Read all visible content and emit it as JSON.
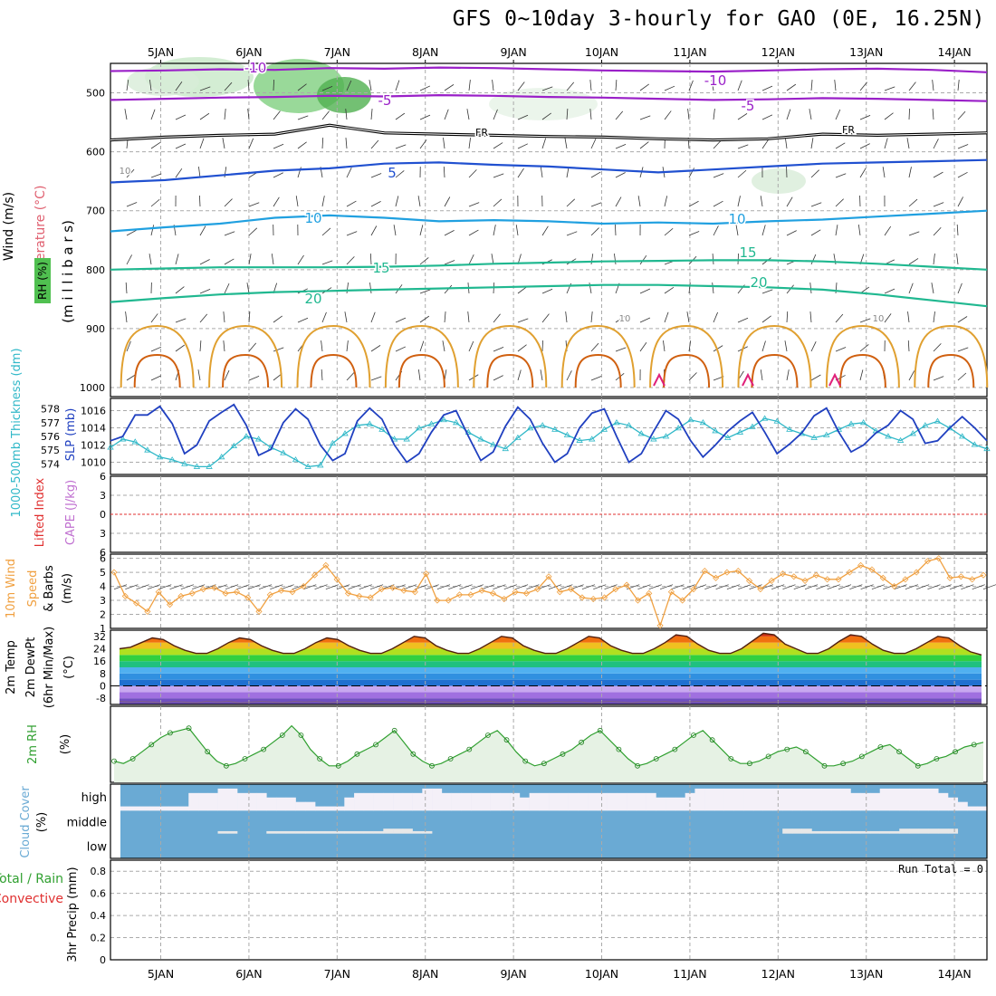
{
  "title": "GFS 0~10day 3-hourly for GAO (0E, 16.25N)",
  "dates": [
    "5JAN",
    "6JAN",
    "7JAN",
    "8JAN",
    "9JAN",
    "10JAN",
    "11JAN",
    "12JAN",
    "13JAN",
    "14JAN"
  ],
  "colors": {
    "purple": "#9a20c8",
    "black": "#000000",
    "blue": "#2050d0",
    "cyan": "#20a0e0",
    "teal": "#20b890",
    "orange": "#e0a030",
    "darkorange": "#d06010",
    "magenta": "#e0207a",
    "rh_green": "#40c040",
    "slp_blue": "#2040c0",
    "thick_cyan": "#30b8c8",
    "li_red": "#e03030",
    "cape_violet": "#c070d0",
    "wind_orange": "#f0a040",
    "cloud_blue": "#6aaad4",
    "cloud_white": "#f4f0f8",
    "cloud_grey": "#e8e8e8"
  },
  "chart_data": [
    {
      "type": "contour",
      "panel": "upper-air",
      "ylabel_parts": [
        "Wind (m/s)",
        "Temperature (°C)",
        "RH (%)",
        "(m i l l i b a r s)"
      ],
      "yticks": [
        500,
        600,
        700,
        800,
        900,
        1000
      ],
      "ylim": [
        1000,
        450
      ],
      "contour_labels": [
        "-10",
        "-10",
        "-5",
        "-5",
        "FR",
        "FR",
        "5",
        "10",
        "10",
        "10",
        "15",
        "15",
        "20",
        "20",
        "10",
        "10"
      ],
      "isotherms": [
        {
          "level": -10,
          "pressure": [
            463,
            462,
            460,
            461,
            458,
            459,
            457,
            458,
            460,
            462,
            463,
            464,
            462,
            460,
            459,
            461,
            465
          ]
        },
        {
          "level": -5,
          "pressure": [
            512,
            510,
            508,
            507,
            505,
            506,
            504,
            505,
            507,
            508,
            510,
            512,
            511,
            509,
            510,
            512,
            514
          ]
        },
        {
          "level": 0,
          "pressure": [
            580,
            575,
            572,
            570,
            555,
            568,
            570,
            572,
            574,
            575,
            578,
            580,
            578,
            570,
            572,
            570,
            568
          ]
        },
        {
          "level": 5,
          "pressure": [
            652,
            648,
            640,
            632,
            628,
            620,
            618,
            622,
            625,
            630,
            635,
            630,
            625,
            620,
            618,
            616,
            614
          ]
        },
        {
          "level": 10,
          "pressure": [
            735,
            728,
            722,
            712,
            708,
            712,
            718,
            716,
            718,
            722,
            720,
            722,
            718,
            715,
            710,
            705,
            700
          ]
        },
        {
          "level": 15,
          "pressure": [
            800,
            798,
            796,
            796,
            796,
            795,
            793,
            790,
            788,
            786,
            785,
            784,
            784,
            786,
            790,
            795,
            800
          ]
        },
        {
          "level": 20,
          "pressure": [
            855,
            848,
            842,
            838,
            836,
            834,
            832,
            830,
            828,
            826,
            826,
            828,
            830,
            834,
            842,
            852,
            862
          ]
        }
      ]
    },
    {
      "type": "line",
      "panel": "slp-thickness",
      "ylabel_parts": [
        "1000-500mb Thickness (dm)",
        "SLP (mb)"
      ],
      "left_ticks": [
        574,
        575,
        576,
        577,
        578
      ],
      "right_ticks": [
        1010,
        1012,
        1014,
        1016
      ],
      "series": [
        {
          "axis": "right",
          "values": [
            1012.5,
            1013.0,
            1015.5,
            1015.5,
            1016.5,
            1014.5,
            1011.0,
            1012.0,
            1014.8,
            1015.8,
            1016.7,
            1014.3,
            1010.8,
            1011.5,
            1014.6,
            1016.2,
            1015.0,
            1012.0,
            1010.2,
            1011.0,
            1014.8,
            1016.3,
            1015.0,
            1012.0,
            1010.0,
            1011.0,
            1013.5,
            1015.5,
            1016.0,
            1013.0,
            1010.2,
            1011.2,
            1014.2,
            1016.4,
            1015.0,
            1012.2,
            1010.0,
            1011.0,
            1014.0,
            1015.7,
            1016.2,
            1013.0,
            1010.0,
            1011.0,
            1013.6,
            1016.0,
            1015.0,
            1012.5,
            1010.6,
            1012.0,
            1013.6,
            1014.8,
            1015.8,
            1013.5,
            1011.0,
            1012.1,
            1013.4,
            1015.4,
            1016.3,
            1013.5,
            1011.2,
            1012.0,
            1013.4,
            1014.3,
            1016.0,
            1015.0,
            1012.2,
            1012.5,
            1014.0,
            1015.3,
            1014.0,
            1012.5
          ]
        },
        {
          "axis": "left",
          "values": [
            575.2,
            575.8,
            575.6,
            575.0,
            574.5,
            574.3,
            574.0,
            573.8,
            573.8,
            574.5,
            575.3,
            576.0,
            575.8,
            575.2,
            574.8,
            574.3,
            573.8,
            573.9,
            575.5,
            576.2,
            576.8,
            576.9,
            576.5,
            575.8,
            575.8,
            576.6,
            576.9,
            577.2,
            577.0,
            576.3,
            575.8,
            575.4,
            575.1,
            575.9,
            576.6,
            576.8,
            576.5,
            576.1,
            575.7,
            575.8,
            576.5,
            577.0,
            576.8,
            576.2,
            575.8,
            576.0,
            576.6,
            577.2,
            577.0,
            576.4,
            575.9,
            576.3,
            576.7,
            577.3,
            577.1,
            576.5,
            576.2,
            575.9,
            576.1,
            576.5,
            576.9,
            577.0,
            576.4,
            576.0,
            575.7,
            576.2,
            576.8,
            577.1,
            576.6,
            576.0,
            575.4,
            575.1
          ]
        }
      ]
    },
    {
      "type": "line",
      "panel": "lifted-cape",
      "ylabel_parts": [
        "Lifted Index",
        "CAPE (J/kg)"
      ],
      "yticks": [
        -6,
        -3,
        0,
        3,
        6
      ],
      "yticklabels": [
        "6",
        "3",
        "0",
        "3",
        "6"
      ],
      "values": []
    },
    {
      "type": "line",
      "panel": "10m-wind",
      "ylabel_parts": [
        "10m Wind",
        "Speed",
        "& Barbs",
        "(m/s)"
      ],
      "yticks": [
        1,
        2,
        3,
        4,
        5,
        6
      ],
      "ylim": [
        1,
        6.3
      ],
      "values": [
        5.0,
        3.3,
        2.8,
        2.2,
        3.6,
        2.7,
        3.3,
        3.5,
        3.8,
        3.9,
        3.5,
        3.6,
        3.2,
        2.2,
        3.4,
        3.7,
        3.6,
        4.0,
        4.8,
        5.5,
        4.5,
        3.5,
        3.3,
        3.2,
        3.8,
        3.9,
        3.7,
        3.6,
        4.9,
        3.0,
        3.0,
        3.4,
        3.4,
        3.7,
        3.5,
        3.1,
        3.6,
        3.5,
        3.8,
        4.7,
        3.6,
        3.8,
        3.2,
        3.1,
        3.2,
        3.8,
        4.1,
        3.0,
        3.5,
        1.2,
        3.6,
        3.0,
        3.8,
        5.1,
        4.6,
        5.0,
        5.1,
        4.4,
        3.8,
        4.4,
        4.9,
        4.7,
        4.4,
        4.8,
        4.5,
        4.5,
        5.0,
        5.5,
        5.2,
        4.6,
        4.0,
        4.5,
        5.0,
        5.8,
        6.0,
        4.6,
        4.7,
        4.5,
        4.8
      ]
    },
    {
      "type": "area",
      "panel": "2m-temp",
      "ylabel_parts": [
        "2m Temp",
        "2m DewPt",
        "(6hr Min/Max)",
        "(°C)"
      ],
      "yticks": [
        -8,
        0,
        8,
        16,
        24,
        32
      ],
      "ylim": [
        -12,
        36
      ],
      "temp": [
        24,
        25,
        28,
        31,
        30,
        26,
        23,
        21,
        21,
        24,
        28,
        31,
        30,
        26,
        23,
        21,
        21,
        24,
        28,
        31,
        30,
        26,
        23,
        21,
        21,
        24,
        28,
        32,
        31,
        26,
        23,
        21,
        21,
        24,
        28,
        32,
        31,
        26,
        23,
        21,
        21,
        24,
        28,
        32,
        31,
        26,
        23,
        21,
        21,
        24,
        28,
        33,
        32,
        27,
        23,
        21,
        21,
        24,
        29,
        34,
        33,
        27,
        24,
        21,
        21,
        24,
        29,
        33,
        32,
        27,
        23,
        21,
        21,
        24,
        28,
        32,
        31,
        26,
        22,
        20
      ],
      "dewpoint": [
        -10,
        -10.5,
        -10,
        -10.5,
        -11,
        -10,
        -10.5,
        -11,
        -10,
        -10.5,
        -10,
        -11,
        -10.5,
        -10,
        -10.5,
        -11,
        -10,
        -10.5,
        -10,
        -11,
        -10.5,
        -10,
        -10.5,
        -11,
        -10,
        -10.5,
        -10,
        -11,
        -10.5,
        -10,
        -10.5,
        -11,
        -10,
        -10.5,
        -10,
        -11,
        -10.5,
        -10,
        -10.5,
        -11,
        -10,
        -10.5,
        -10,
        -11,
        -10.5,
        -10,
        -10.5,
        -11,
        -10,
        -10.5,
        -10,
        -11,
        -10.5,
        -10,
        -10.5,
        -11,
        -10,
        -10.5,
        -10,
        -11,
        -10.5,
        -10,
        -10.5,
        -11,
        -10,
        -10.5,
        -10,
        -11,
        -10.5,
        -10,
        -10.5,
        -11,
        -10,
        -10.5,
        -10,
        -11,
        -10.5,
        -10,
        -10.5,
        -11
      ]
    },
    {
      "type": "line",
      "panel": "2m-rh",
      "ylabel_parts": [
        "2m RH",
        "(%)"
      ],
      "ylim": [
        0,
        30
      ],
      "values": [
        9,
        8,
        10,
        13,
        16,
        19,
        21,
        22,
        23,
        18,
        13,
        9,
        7,
        8,
        10,
        12,
        14,
        17,
        20,
        24,
        20,
        14,
        10,
        7,
        7,
        9,
        12,
        14,
        16,
        19,
        22,
        17,
        12,
        9,
        7,
        8,
        10,
        12,
        14,
        17,
        20,
        22,
        18,
        13,
        9,
        7,
        8,
        10,
        12,
        14,
        17,
        20,
        22,
        18,
        14,
        10,
        7,
        8,
        10,
        12,
        14,
        17,
        20,
        22,
        18,
        14,
        10,
        8,
        8,
        9,
        11,
        13,
        14,
        15,
        13,
        10,
        7,
        7,
        8,
        9,
        11,
        13,
        15,
        16,
        13,
        10,
        7,
        8,
        10,
        11,
        13,
        15,
        16,
        17
      ]
    },
    {
      "type": "heatmap",
      "panel": "cloud-cover",
      "ylabel_parts": [
        "Cloud Cover",
        "(%)"
      ],
      "rows": [
        "high",
        "middle",
        "low"
      ],
      "high": [
        100,
        100,
        100,
        100,
        100,
        100,
        100,
        40,
        40,
        40,
        20,
        20,
        40,
        40,
        40,
        60,
        60,
        60,
        80,
        80,
        100,
        100,
        100,
        60,
        40,
        40,
        40,
        40,
        40,
        40,
        40,
        20,
        20,
        40,
        40,
        40,
        40,
        40,
        40,
        40,
        40,
        60,
        40,
        40,
        40,
        40,
        40,
        40,
        40,
        40,
        40,
        40,
        40,
        40,
        40,
        60,
        60,
        60,
        40,
        20,
        20,
        20,
        20,
        20,
        20,
        20,
        20,
        20,
        20,
        20,
        20,
        20,
        20,
        20,
        20,
        40,
        40,
        40,
        20,
        20,
        20,
        20,
        20,
        20,
        40,
        60,
        80,
        100,
        100
      ],
      "middle": [
        100,
        100,
        100,
        100,
        100,
        100,
        100,
        100,
        100,
        100,
        90,
        90,
        100,
        100,
        100,
        90,
        90,
        90,
        90,
        90,
        90,
        90,
        90,
        90,
        90,
        90,
        90,
        80,
        80,
        80,
        90,
        90,
        100,
        100,
        100,
        100,
        100,
        100,
        100,
        100,
        100,
        100,
        100,
        100,
        100,
        100,
        100,
        100,
        100,
        100,
        100,
        100,
        100,
        100,
        100,
        100,
        100,
        100,
        100,
        100,
        100,
        100,
        100,
        100,
        100,
        100,
        100,
        100,
        80,
        80,
        80,
        90,
        90,
        90,
        90,
        90,
        90,
        90,
        90,
        90,
        80,
        80,
        80,
        80,
        80,
        80,
        100,
        100,
        100
      ]
    },
    {
      "type": "bar",
      "panel": "precip",
      "ylabel_parts": [
        "Total / Rain",
        "Convective",
        "3hr Precip (mm)"
      ],
      "yticks": [
        0,
        0.2,
        0.4,
        0.6,
        0.8
      ],
      "yticklabels": [
        "0",
        "0.2",
        "0.4",
        "0.6",
        "0.8"
      ],
      "ylim": [
        0,
        0.9
      ],
      "run_total": "Run Total = 0",
      "values": []
    }
  ]
}
